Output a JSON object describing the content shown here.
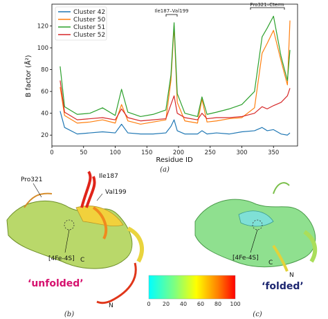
{
  "chart_data": {
    "type": "line",
    "xlabel": "Residue ID",
    "ylabel": "B factor (Å²)",
    "xlim": [
      0,
      388
    ],
    "ylim": [
      10,
      140
    ],
    "xticks": [
      0,
      50,
      100,
      150,
      200,
      250,
      300,
      350
    ],
    "yticks": [
      20,
      40,
      60,
      80,
      100,
      120
    ],
    "legend_position": "top-left",
    "grid": false,
    "series": [
      {
        "name": "Cluster 42",
        "color": "#1f77b4",
        "x": [
          13,
          20,
          40,
          60,
          80,
          100,
          110,
          120,
          140,
          160,
          180,
          188,
          193,
          198,
          210,
          230,
          237,
          245,
          260,
          280,
          300,
          320,
          332,
          340,
          350,
          362,
          372,
          376
        ],
        "y": [
          42,
          27,
          21,
          22,
          23,
          22,
          30,
          22,
          21,
          21,
          22,
          28,
          34,
          24,
          21,
          21,
          24,
          21,
          22,
          21,
          23,
          24,
          27,
          24,
          25,
          21,
          20,
          22
        ]
      },
      {
        "name": "Cluster 50",
        "color": "#ff7f0e",
        "x": [
          13,
          20,
          40,
          60,
          80,
          100,
          110,
          120,
          140,
          160,
          180,
          188,
          193,
          198,
          210,
          230,
          237,
          245,
          260,
          280,
          300,
          320,
          332,
          340,
          350,
          362,
          372,
          376
        ],
        "y": [
          64,
          38,
          31,
          32,
          34,
          31,
          48,
          33,
          30,
          32,
          34,
          70,
          120,
          50,
          33,
          31,
          53,
          32,
          33,
          35,
          36,
          45,
          95,
          104,
          116,
          88,
          66,
          125
        ]
      },
      {
        "name": "Cluster 51",
        "color": "#2ca02c",
        "x": [
          13,
          20,
          40,
          60,
          80,
          100,
          110,
          120,
          140,
          160,
          180,
          188,
          193,
          198,
          210,
          230,
          237,
          245,
          260,
          280,
          300,
          320,
          332,
          340,
          350,
          362,
          372,
          376
        ],
        "y": [
          83,
          46,
          39,
          40,
          45,
          38,
          62,
          41,
          37,
          39,
          43,
          75,
          123,
          58,
          40,
          37,
          55,
          39,
          41,
          44,
          48,
          60,
          110,
          118,
          129,
          92,
          70,
          98
        ]
      },
      {
        "name": "Cluster 52",
        "color": "#d62728",
        "x": [
          13,
          20,
          40,
          60,
          80,
          100,
          110,
          120,
          140,
          160,
          180,
          188,
          193,
          198,
          210,
          230,
          237,
          245,
          260,
          280,
          300,
          320,
          332,
          340,
          350,
          362,
          372,
          376
        ],
        "y": [
          70,
          41,
          34,
          35,
          36,
          34,
          44,
          36,
          33,
          34,
          35,
          48,
          56,
          40,
          36,
          34,
          40,
          35,
          36,
          36,
          37,
          40,
          46,
          44,
          47,
          50,
          56,
          63
        ]
      }
    ],
    "annotations": [
      "Ile187–Val199",
      "Pro321–Cterm"
    ]
  },
  "captions": {
    "a": "(a)",
    "b": "(b)",
    "c": "(c)"
  },
  "structure_labels": {
    "pro321": "Pro321",
    "ile187": "Ile187",
    "val199": "Val199",
    "cluster_b": "[4Fe-4S]",
    "cluster_c": "[4Fe-4S]",
    "c_b": "C",
    "n_b": "N",
    "c_c": "C",
    "n_c": "N",
    "unfolded": "‘unfolded’",
    "folded": "‘folded’"
  },
  "colorbar": {
    "ticks": [
      "0",
      "20",
      "40",
      "60",
      "80",
      "100"
    ],
    "colors": [
      "#00ffff",
      "#7fff7f",
      "#ffff00",
      "#ff8000",
      "#ff0000"
    ]
  }
}
